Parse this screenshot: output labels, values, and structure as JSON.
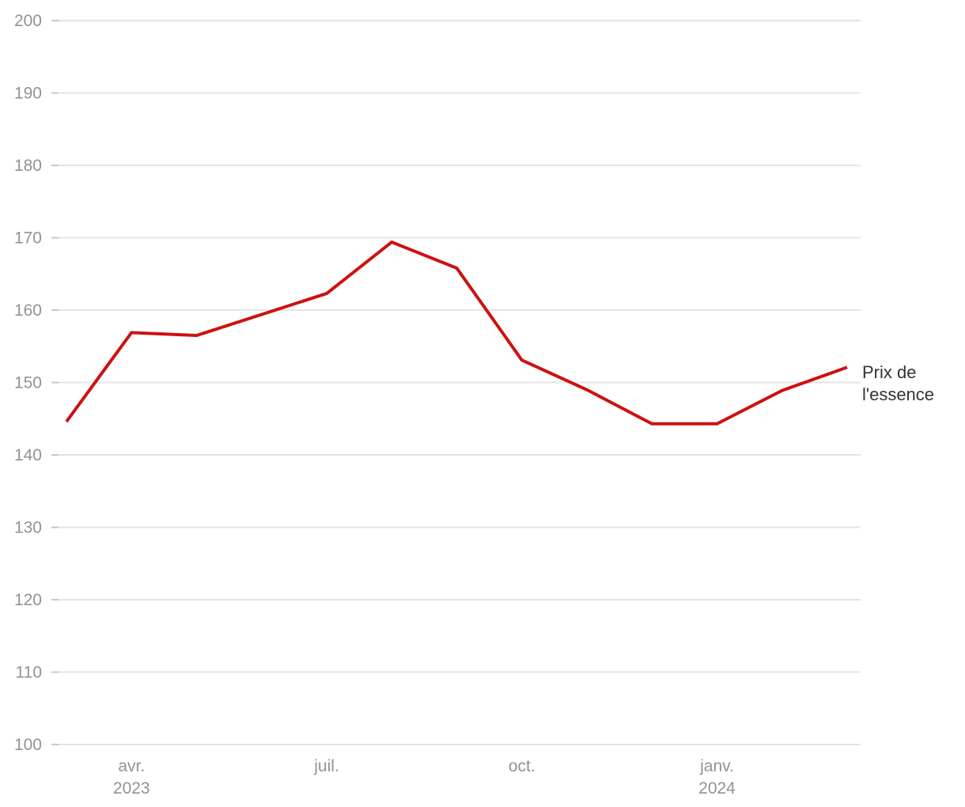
{
  "chart_data": {
    "type": "line",
    "title": "",
    "xlabel": "",
    "ylabel": "",
    "categories": [
      "mars 2023",
      "avr. 2023",
      "mai 2023",
      "juin 2023",
      "juil. 2023",
      "août 2023",
      "sept. 2023",
      "oct. 2023",
      "nov. 2023",
      "déc. 2023",
      "janv. 2024",
      "févr. 2024",
      "mars 2024"
    ],
    "series": [
      {
        "name": "Prix de l'essence",
        "values": [
          144.6,
          156.9,
          156.5,
          159.4,
          162.3,
          169.4,
          165.8,
          153.1,
          149.0,
          144.3,
          144.3,
          148.9,
          152.1
        ]
      }
    ],
    "series_label_lines": [
      "Prix de",
      "l'essence"
    ],
    "ylim": [
      100,
      200
    ],
    "yticks": [
      100,
      110,
      120,
      130,
      140,
      150,
      160,
      170,
      180,
      190,
      200
    ],
    "ytick_labels": [
      "100",
      "110",
      "120",
      "130",
      "140",
      "150",
      "160",
      "170",
      "180",
      "190",
      "200"
    ],
    "xticks": [
      {
        "index": 1,
        "label": "avr.",
        "sublabel": "2023"
      },
      {
        "index": 4,
        "label": "juil.",
        "sublabel": ""
      },
      {
        "index": 7,
        "label": "oct.",
        "sublabel": ""
      },
      {
        "index": 10,
        "label": "janv.",
        "sublabel": "2024"
      }
    ],
    "grid": true,
    "legend_position": "end-of-line",
    "colors": {
      "line": "#cc1111",
      "gridline": "#e4e4e4",
      "gridtick": "#c7c7c7",
      "axis_label": "#929292",
      "series_label": "#333333",
      "background": "#ffffff"
    }
  }
}
